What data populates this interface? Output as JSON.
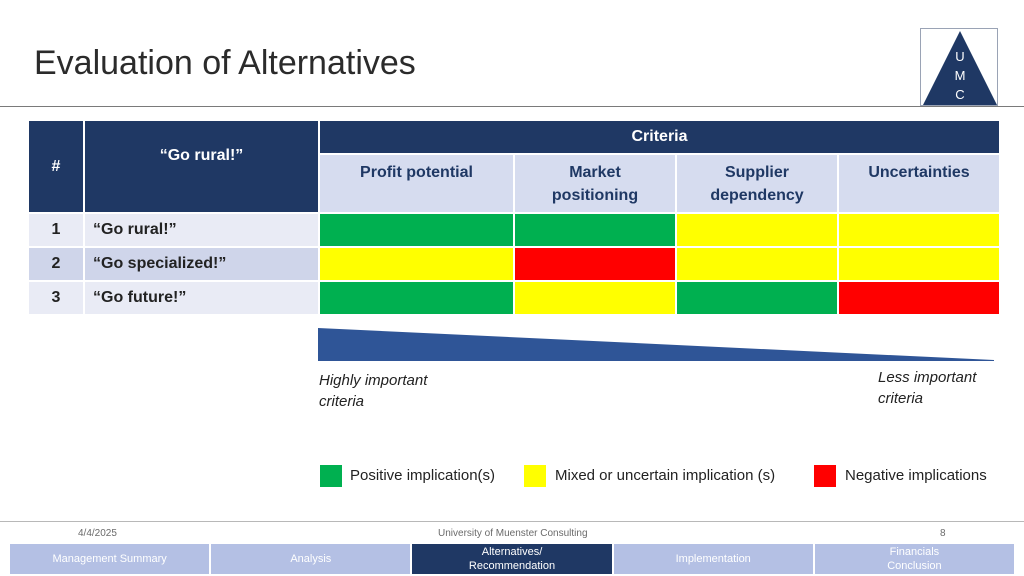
{
  "slide": {
    "title": "Evaluation of Alternatives",
    "logo_letters": [
      "U",
      "M",
      "C"
    ]
  },
  "table": {
    "hash_header": "#",
    "name_header": "“Go rural!”",
    "criteria_header": "Criteria",
    "criteria": [
      "Profit potential",
      "Market\npositioning",
      "Supplier\ndependency",
      "Uncertainties"
    ],
    "rows": [
      {
        "num": "1",
        "name": "“Go rural!”",
        "ratings": [
          "positive",
          "positive",
          "mixed",
          "mixed"
        ]
      },
      {
        "num": "2",
        "name": "“Go specialized!”",
        "ratings": [
          "mixed",
          "negative",
          "mixed",
          "mixed"
        ]
      },
      {
        "num": "3",
        "name": "“Go future!”",
        "ratings": [
          "positive",
          "mixed",
          "positive",
          "negative"
        ]
      }
    ]
  },
  "importance": {
    "high_label": "Highly important\ncriteria",
    "low_label": "Less important\ncriteria"
  },
  "legend": [
    {
      "key": "positive",
      "label": "Positive implication(s)"
    },
    {
      "key": "mixed",
      "label": "Mixed or uncertain implication (s)"
    },
    {
      "key": "negative",
      "label": "Negative implications"
    }
  ],
  "colors": {
    "positive": "#00b050",
    "mixed": "#ffff00",
    "negative": "#ff0000",
    "header_navy": "#1f3864",
    "wedge_blue": "#2f5597"
  },
  "footer": {
    "date": "4/4/2025",
    "org": "University of Muenster Consulting",
    "page": "8"
  },
  "nav": [
    {
      "label": "Management Summary",
      "active": false
    },
    {
      "label": "Analysis",
      "active": false
    },
    {
      "label": "Alternatives/\nRecommendation",
      "active": true
    },
    {
      "label": "Implementation",
      "active": false
    },
    {
      "label": "Financials\nConclusion",
      "active": false
    }
  ]
}
